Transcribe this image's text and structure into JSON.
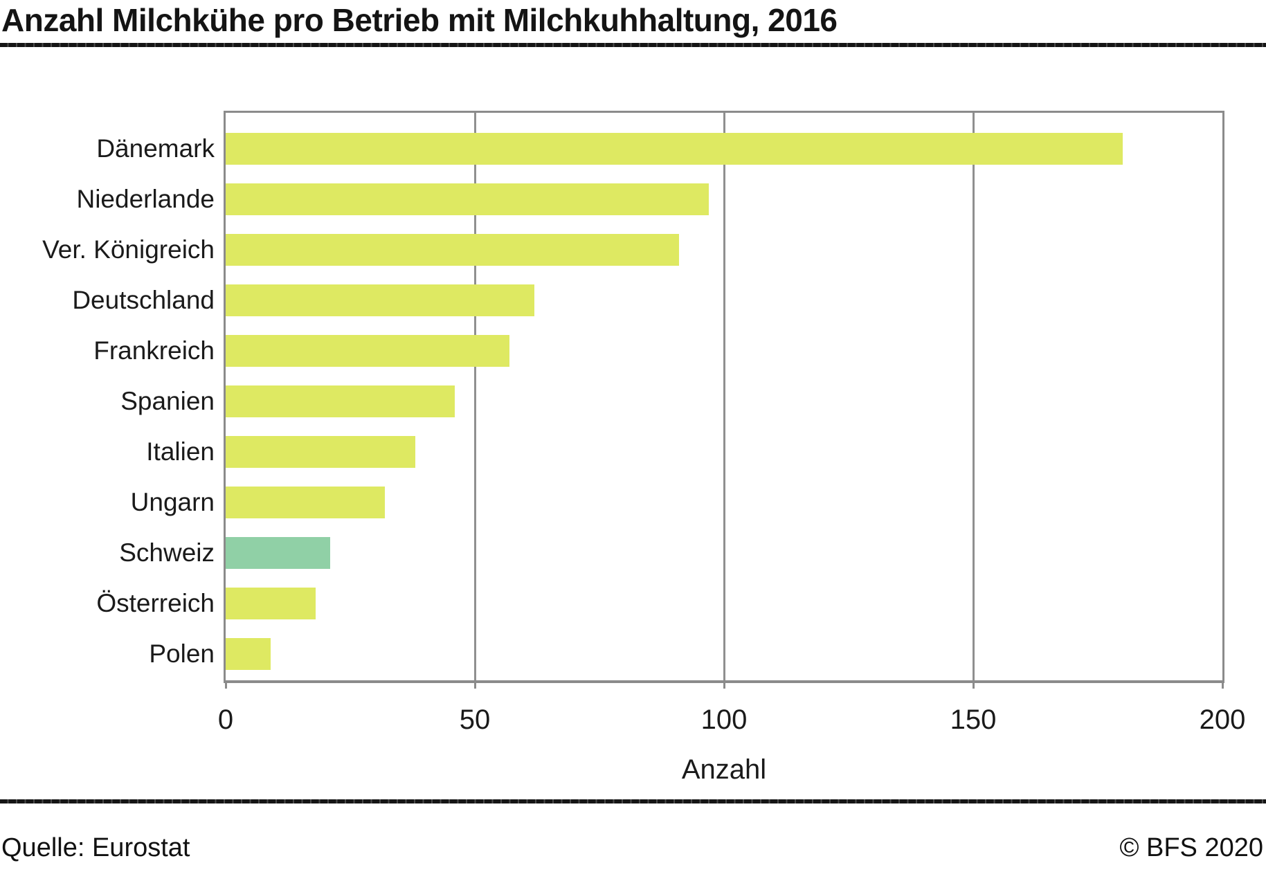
{
  "title": "Anzahl Milchkühe pro Betrieb mit Milchkuhhaltung, 2016",
  "footer": {
    "source": "Quelle: Eurostat",
    "copyright": "© BFS 2020"
  },
  "colors": {
    "bar_default": "#dee962",
    "bar_highlight": "#90d0a6",
    "axis_gray": "#8b8b8b",
    "rule_black": "#151515"
  },
  "chart_data": {
    "type": "bar",
    "orientation": "horizontal",
    "title": "Anzahl Milchkühe pro Betrieb mit Milchkuhhaltung, 2016",
    "categories": [
      "Dänemark",
      "Niederlande",
      "Ver. Königreich",
      "Deutschland",
      "Frankreich",
      "Spanien",
      "Italien",
      "Ungarn",
      "Schweiz",
      "Österreich",
      "Polen"
    ],
    "values": [
      180,
      97,
      91,
      62,
      57,
      46,
      38,
      32,
      21,
      18,
      9
    ],
    "highlight_category": "Schweiz",
    "xlabel": "Anzahl",
    "ylabel": "",
    "xlim": [
      0,
      200
    ],
    "xticks": [
      0,
      50,
      100,
      150,
      200
    ],
    "grid": "vertical-gridlines-at-inner-ticks",
    "legend": "none"
  }
}
